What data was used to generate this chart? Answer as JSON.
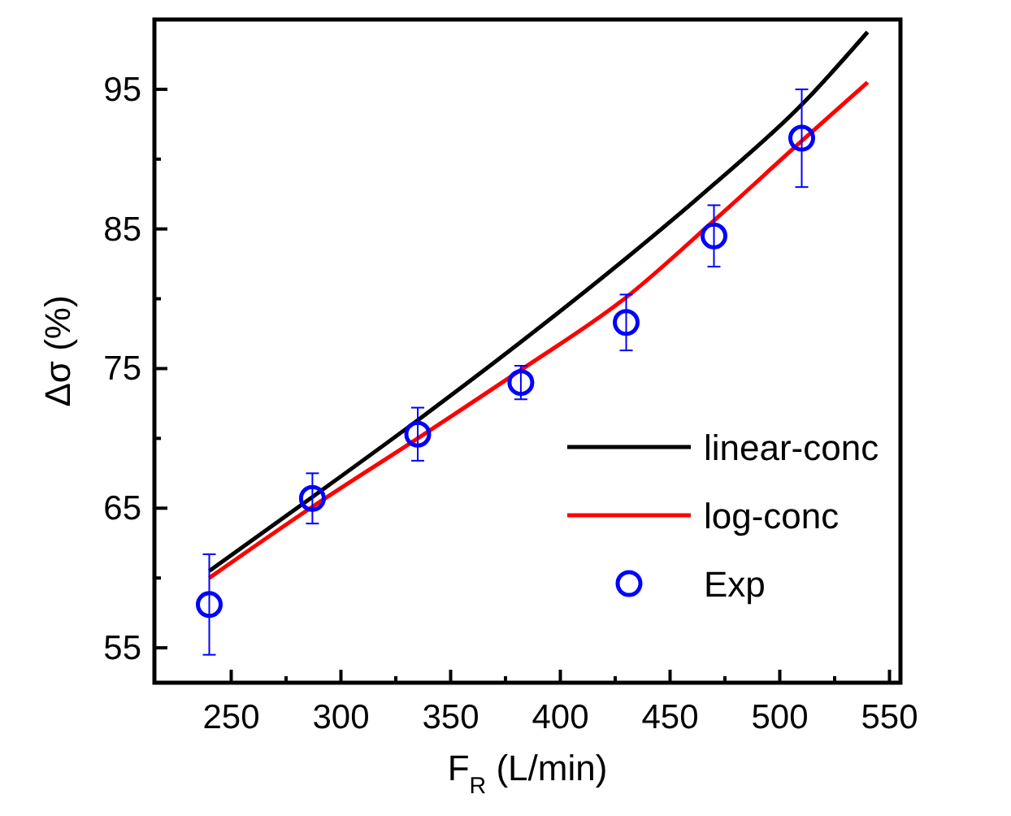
{
  "chart_data": {
    "type": "line",
    "xlabel": "F$_{R}$ (L/min)",
    "ylabel": "Δσ (%)",
    "xlim": [
      215,
      555
    ],
    "ylim": [
      52.5,
      100
    ],
    "xticks": [
      250,
      {
        "value": 275,
        "label": null
      },
      300,
      {
        "value": 325,
        "label": null
      },
      350,
      {
        "value": 375,
        "label": null
      },
      400,
      {
        "value": 425,
        "label": null
      },
      450,
      {
        "value": 475,
        "label": null
      },
      500,
      {
        "value": 525,
        "label": null
      },
      550
    ],
    "yticks": [
      55,
      {
        "value": 60,
        "label": null
      },
      65,
      {
        "value": 70,
        "label": null
      },
      75,
      {
        "value": 80,
        "label": null
      },
      85,
      {
        "value": 90,
        "label": null
      },
      95
    ],
    "legend": "bottom right",
    "grid": false,
    "series": [
      {
        "name": "linear-conc",
        "color": "#000000",
        "x": [
          240,
          287,
          335,
          382,
          430,
          470,
          510,
          540
        ],
        "values": [
          60.5,
          65.8,
          71.3,
          76.9,
          82.9,
          88.2,
          93.9,
          99.1
        ]
      },
      {
        "name": "log-conc",
        "color": "#ff0000",
        "x": [
          240,
          287,
          335,
          382,
          430,
          470,
          510,
          540
        ],
        "values": [
          60.0,
          65.1,
          70.0,
          74.9,
          80.1,
          85.6,
          91.3,
          95.5
        ]
      },
      {
        "name": "Exp",
        "type": "scatter",
        "color": "#0000ff",
        "marker": "circle",
        "x": [
          240,
          287,
          335,
          382,
          430,
          470,
          510
        ],
        "values": [
          58.1,
          65.7,
          70.3,
          74.0,
          78.3,
          84.5,
          91.5
        ],
        "errors": [
          3.6,
          1.8,
          1.9,
          1.2,
          2.0,
          2.2,
          3.5
        ]
      }
    ]
  }
}
